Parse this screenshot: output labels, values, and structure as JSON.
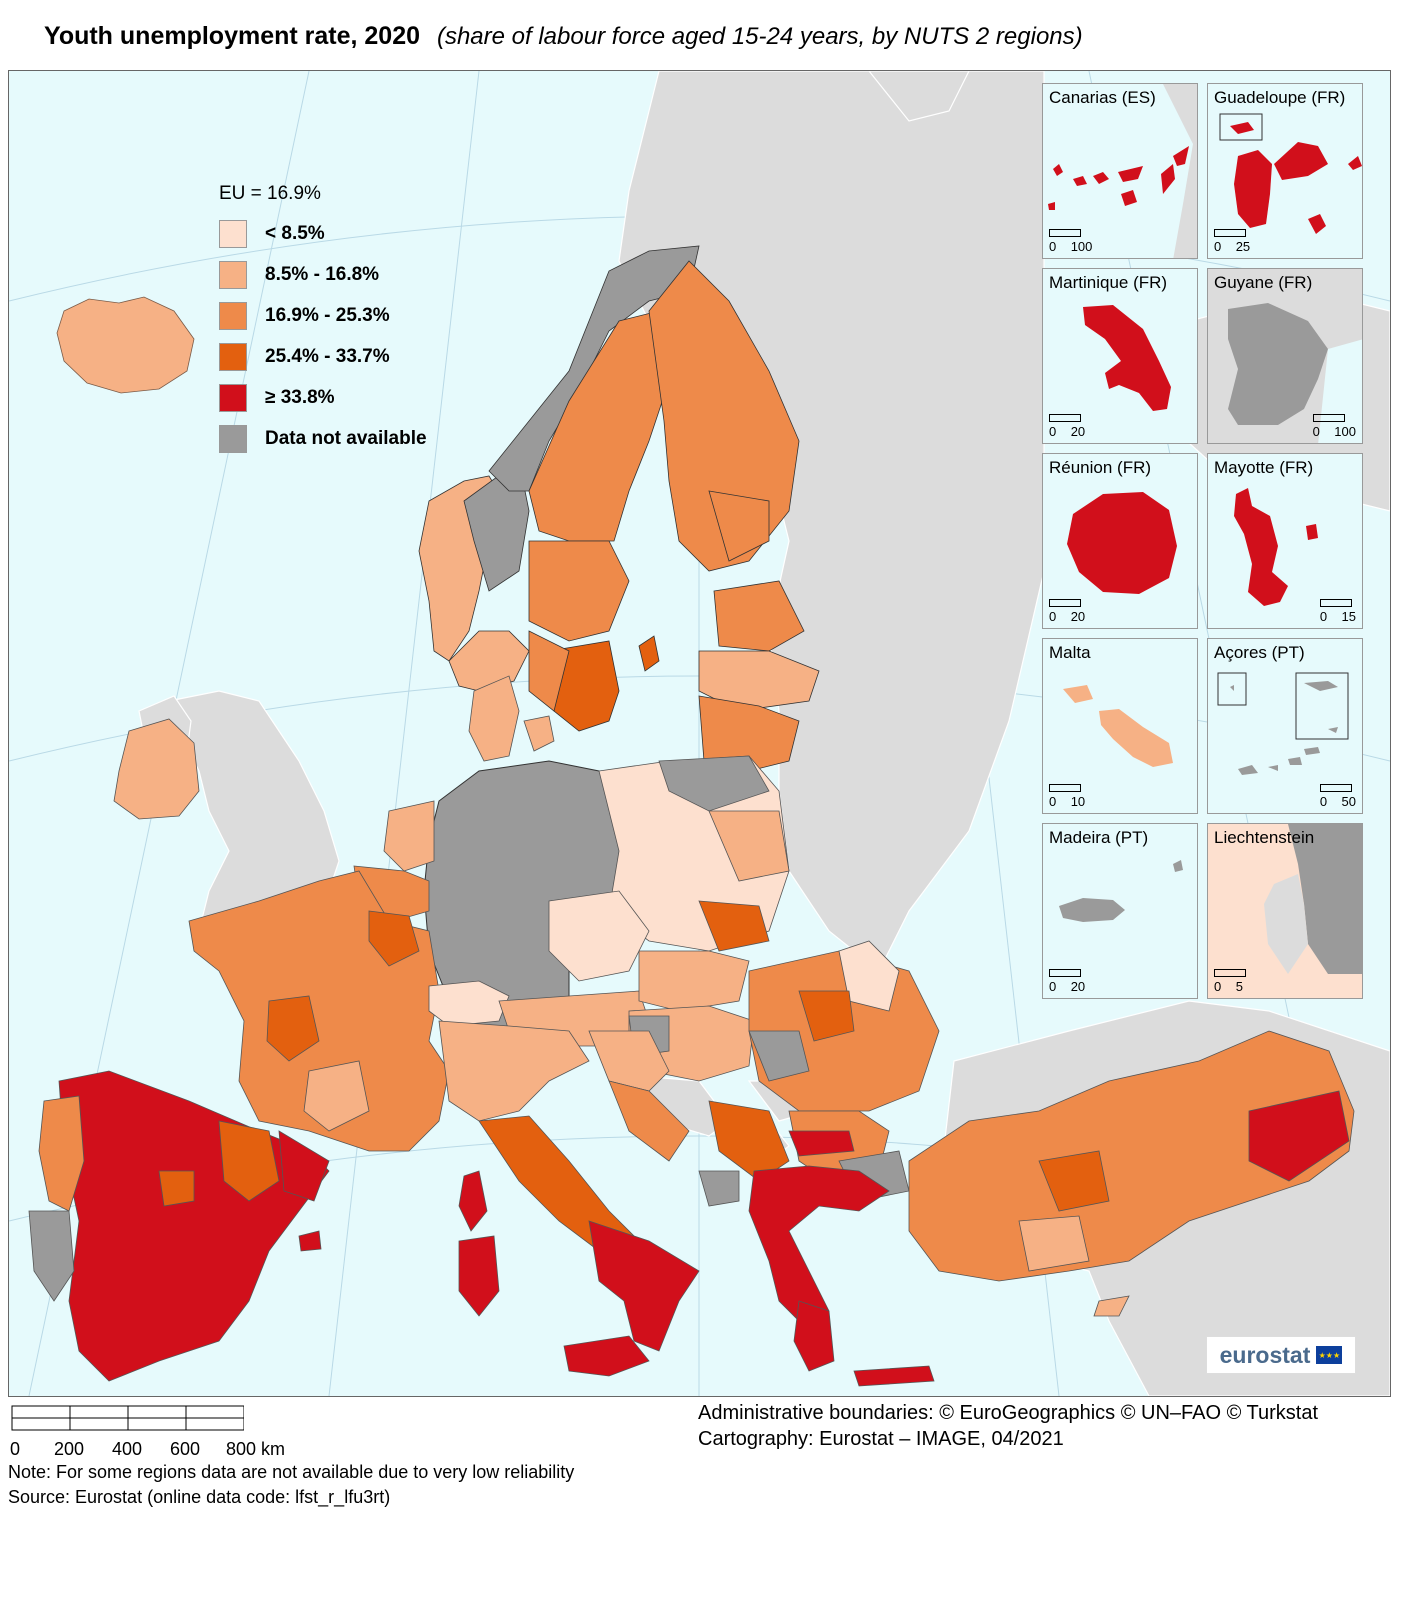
{
  "title": "Youth unemployment rate, 2020",
  "subtitle": "(share of labour force aged 15-24 years, by NUTS 2 regions)",
  "legend": {
    "header": "EU = 16.9%",
    "classes": [
      {
        "label": "< 8.5%",
        "color": "#fde0cf"
      },
      {
        "label": "8.5% - 16.8%",
        "color": "#f6b185"
      },
      {
        "label": "16.9% - 25.3%",
        "color": "#ee8a4a"
      },
      {
        "label": "25.4% - 33.7%",
        "color": "#e3600f"
      },
      {
        "label": "≥ 33.8%",
        "color": "#d10f1b"
      },
      {
        "label": "Data not available",
        "color": "#9a9a9a"
      }
    ]
  },
  "insets": [
    {
      "name": "Canarias (ES)",
      "scale": [
        "0",
        "100"
      ]
    },
    {
      "name": "Guadeloupe (FR)",
      "scale": [
        "0",
        "25"
      ]
    },
    {
      "name": "Martinique (FR)",
      "scale": [
        "0",
        "20"
      ]
    },
    {
      "name": "Guyane (FR)",
      "scale": [
        "0",
        "100"
      ]
    },
    {
      "name": "Réunion (FR)",
      "scale": [
        "0",
        "20"
      ]
    },
    {
      "name": "Mayotte (FR)",
      "scale": [
        "0",
        "15"
      ]
    },
    {
      "name": "Malta",
      "scale": [
        "0",
        "10"
      ]
    },
    {
      "name": "Açores (PT)",
      "scale": [
        "0",
        "50"
      ]
    },
    {
      "name": "Madeira (PT)",
      "scale": [
        "0",
        "20"
      ]
    },
    {
      "name": "Liechtenstein",
      "scale": [
        "0",
        "5"
      ]
    }
  ],
  "logo": "eurostat",
  "scalebar": {
    "labels": [
      "0",
      "200",
      "400",
      "600",
      "800 km"
    ]
  },
  "credits": [
    "Administrative boundaries: © EuroGeographics © UN–FAO © Turkstat",
    "Cartography: Eurostat – IMAGE, 04/2021"
  ],
  "notes": [
    "Note: For some regions data are not available due to very low reliability",
    "Source: Eurostat (online data code: lfst_r_lfu3rt)"
  ],
  "colors": {
    "sea": "#e6fafc",
    "non_eu_land": "#dcdcdc",
    "class1": "#fde0cf",
    "class2": "#f6b185",
    "class3": "#ee8a4a",
    "class4": "#e3600f",
    "class5": "#d10f1b",
    "na": "#9a9a9a"
  }
}
